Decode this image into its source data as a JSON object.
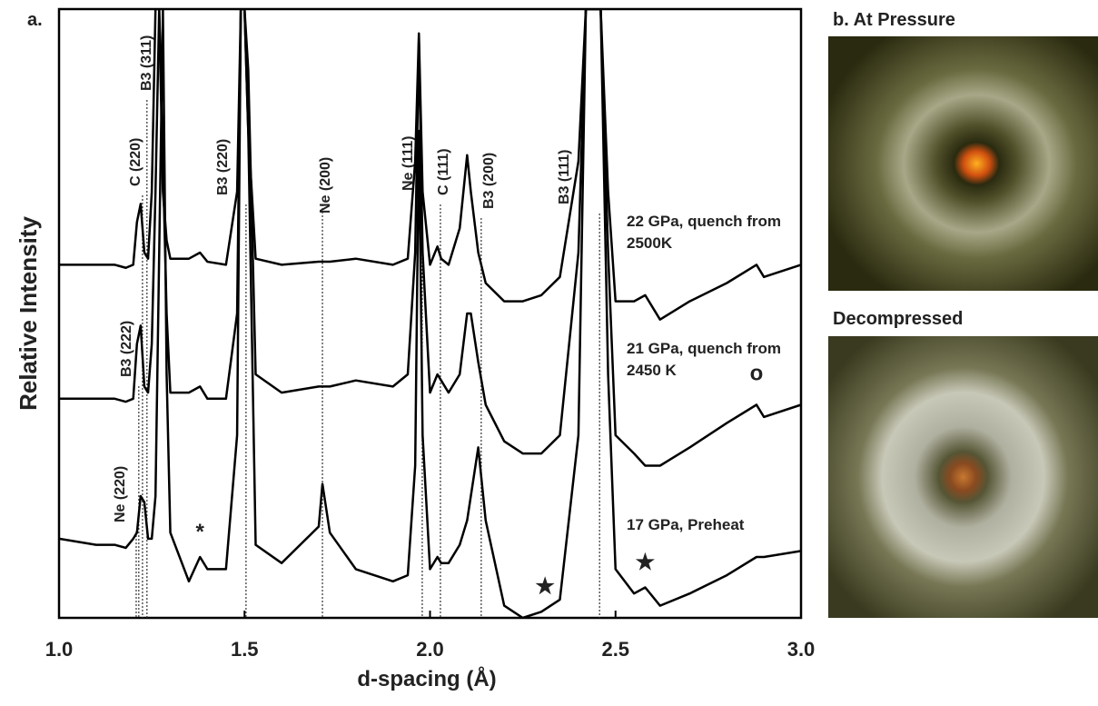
{
  "chart_data": {
    "type": "line",
    "panel_label": "a.",
    "xlabel": "d-spacing (Å)",
    "ylabel": "Relative Intensity",
    "xlim": [
      1.0,
      3.0
    ],
    "xticks": [
      {
        "value": 1,
        "label": "1.0"
      },
      1.5,
      {
        "value": 2,
        "label": "2.0"
      },
      2.5,
      {
        "value": 3,
        "label": "3.0"
      }
    ],
    "ylim": [
      0,
      100
    ],
    "x": [
      1.0,
      1.1,
      1.15,
      1.18,
      1.2,
      1.21,
      1.22,
      1.23,
      1.24,
      1.25,
      1.26,
      1.27,
      1.28,
      1.29,
      1.3,
      1.35,
      1.38,
      1.4,
      1.45,
      1.48,
      1.49,
      1.5,
      1.51,
      1.53,
      1.6,
      1.7,
      1.71,
      1.73,
      1.8,
      1.9,
      1.94,
      1.96,
      1.97,
      1.98,
      2.0,
      2.02,
      2.03,
      2.05,
      2.08,
      2.1,
      2.11,
      2.13,
      2.15,
      2.2,
      2.25,
      2.3,
      2.35,
      2.4,
      2.42,
      2.44,
      2.46,
      2.48,
      2.5,
      2.55,
      2.58,
      2.62,
      2.7,
      2.8,
      2.88,
      2.9,
      3.0
    ],
    "series": [
      {
        "name": "22 GPa,  quench from 2500K",
        "color": "#000000",
        "values": [
          58,
          58,
          58,
          57.5,
          58,
          65,
          68,
          60,
          59,
          70,
          100,
          100,
          70,
          62,
          59,
          59,
          60,
          58.5,
          58,
          70,
          100,
          100,
          80,
          59,
          58,
          58.5,
          58.5,
          58.5,
          59,
          58,
          59,
          75,
          96,
          70,
          58,
          61,
          59,
          58,
          64,
          76,
          70,
          60,
          55,
          52,
          52,
          53,
          56,
          75,
          100,
          100,
          100,
          70,
          52,
          52,
          53,
          49,
          52,
          55,
          58,
          56,
          58
        ]
      },
      {
        "name": "21 GPa, quench from 2450 K",
        "color": "#000000",
        "values": [
          36,
          36,
          36,
          35.5,
          36,
          45,
          48,
          38,
          37,
          45,
          70,
          100,
          75,
          50,
          37,
          37,
          38,
          36,
          36,
          50,
          100,
          100,
          90,
          40,
          37,
          38,
          38,
          38,
          39,
          38,
          40,
          60,
          95,
          60,
          37,
          40,
          39,
          37,
          40,
          50,
          50,
          42,
          35,
          29,
          27,
          27,
          30,
          60,
          100,
          100,
          100,
          60,
          30,
          27,
          25,
          25,
          28,
          32,
          35,
          33,
          35
        ]
      },
      {
        "name": "17 GPa, Preheat",
        "color": "#000000",
        "values": [
          13,
          12,
          12,
          11.5,
          13,
          14,
          20,
          19,
          13,
          13,
          20,
          60,
          100,
          40,
          14,
          6,
          10,
          8,
          8,
          30,
          100,
          100,
          80,
          12,
          9,
          15,
          22,
          14,
          8,
          6,
          7,
          25,
          80,
          30,
          8,
          10,
          9,
          9,
          12,
          16,
          20,
          28,
          16,
          2,
          0,
          1,
          3,
          30,
          100,
          100,
          100,
          40,
          8,
          4,
          5,
          2,
          4,
          7,
          10,
          10,
          11
        ]
      }
    ],
    "annotations": [
      {
        "text": "Ne (220)",
        "x": 1.208
      },
      {
        "text": "B3 (222)",
        "x": 1.215
      },
      {
        "text": "C (220)",
        "x": 1.225
      },
      {
        "text": "B3 (311)",
        "x": 1.237
      },
      {
        "text": "B3 (220)",
        "x": 1.504
      },
      {
        "text": "Ne (200)",
        "x": 1.71
      },
      {
        "text": "Ne (111)",
        "x": 1.979
      },
      {
        "text": "C (111)",
        "x": 2.028
      },
      {
        "text": "B3 (200)",
        "x": 2.138
      },
      {
        "text": "B3 (111)",
        "x": 2.457
      }
    ],
    "markers": [
      {
        "text": "*",
        "x": 1.38,
        "y": 13
      },
      {
        "text": "o",
        "x": 2.88,
        "y": 39
      },
      {
        "text": "★",
        "x": 2.31,
        "y": 4
      },
      {
        "text": "★",
        "x": 2.58,
        "y": 8
      }
    ]
  },
  "photos": {
    "title": "b.  At Pressure",
    "caption": "Decompressed"
  }
}
